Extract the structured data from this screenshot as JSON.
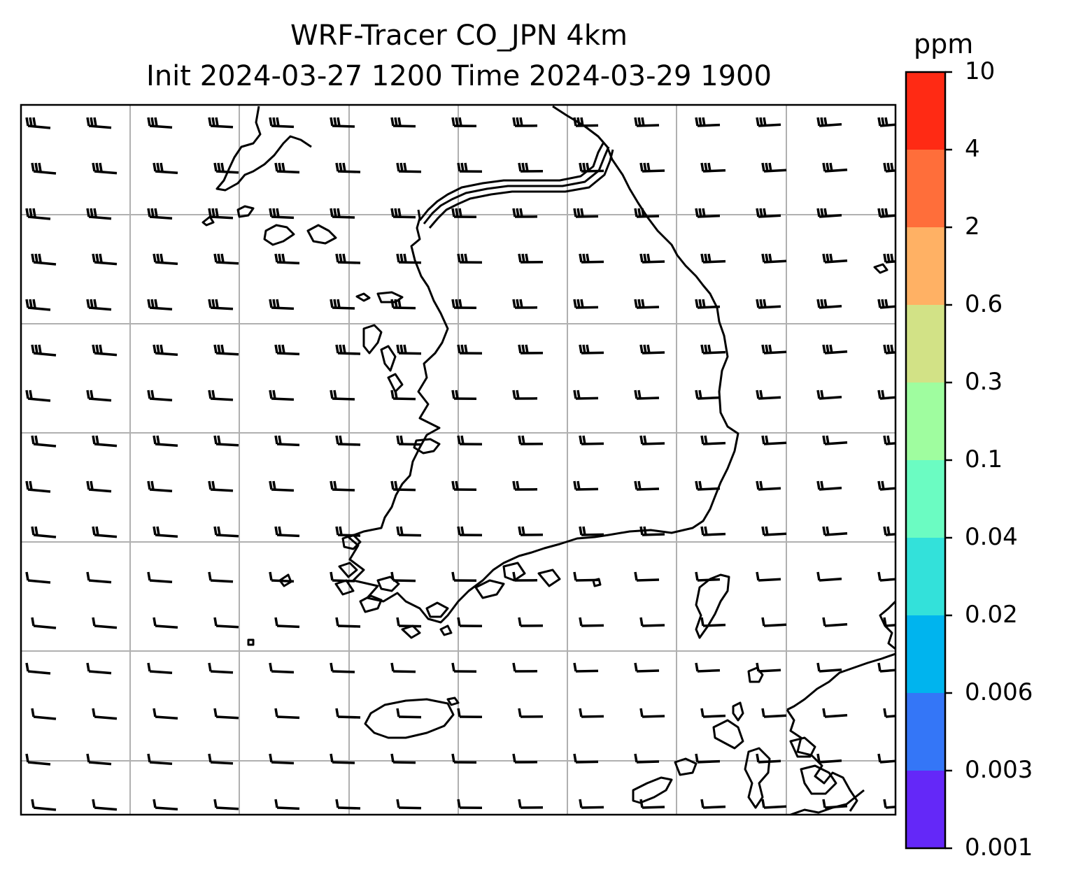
{
  "title": {
    "line1": "WRF-Tracer CO_JPN 4km",
    "line2": "Init 2024-03-27 1200 Time 2024-03-29 1900"
  },
  "colorbar": {
    "unit": "ppm",
    "ticks": [
      "10",
      "4",
      "2",
      "0.6",
      "0.3",
      "0.1",
      "0.04",
      "0.02",
      "0.006",
      "0.003",
      "0.001"
    ],
    "colors": [
      "#ff2a14",
      "#ff6e3a",
      "#ffb164",
      "#d2e286",
      "#9ffd9f",
      "#6bfcc2",
      "#33e1da",
      "#00b4ee",
      "#3476f7",
      "#6428f8"
    ]
  },
  "map": {
    "gridlines": "on",
    "wind_barbs": "uniform grid, mostly westerly winds",
    "region": "Korean Peninsula and western Japan"
  }
}
